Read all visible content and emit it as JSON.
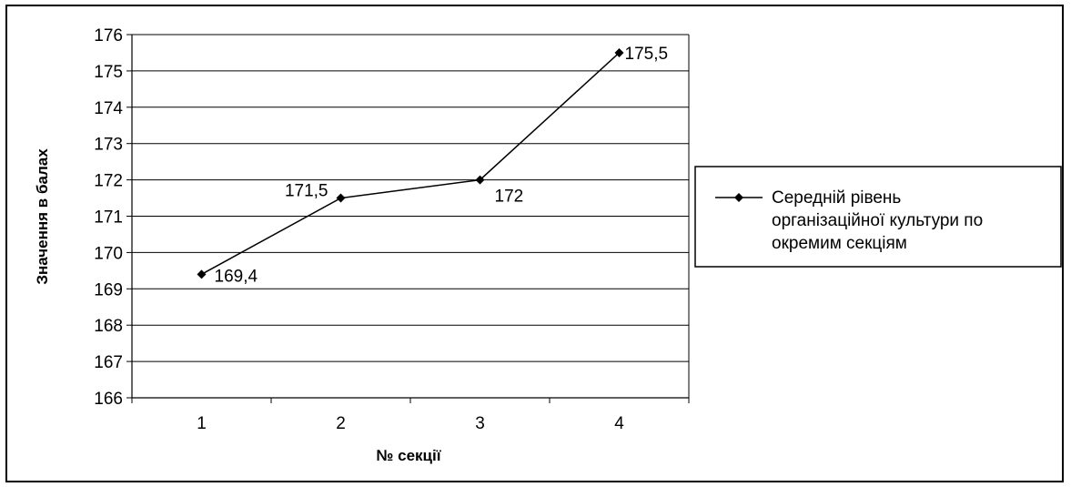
{
  "chart_data": {
    "type": "line",
    "categories": [
      "1",
      "2",
      "3",
      "4"
    ],
    "series": [
      {
        "name": "Середній рівень організаційної культури по окремим секціям",
        "values": [
          169.4,
          171.5,
          172,
          175.5
        ],
        "value_labels": [
          "169,4",
          "171,5",
          "172",
          "175,5"
        ]
      }
    ],
    "xlabel": "№ секції",
    "ylabel": "Значення в балах",
    "ylim": [
      166,
      176
    ],
    "yticks": [
      "166",
      "167",
      "168",
      "169",
      "170",
      "171",
      "172",
      "173",
      "174",
      "175",
      "176"
    ],
    "grid": "horizontal",
    "legend_position": "right",
    "legend_lines": [
      "Середній рівень",
      "організаційної культури по",
      "окремим секціям"
    ],
    "colors": {
      "line": "#000000",
      "marker": "#000000",
      "grid": "#000000"
    }
  }
}
